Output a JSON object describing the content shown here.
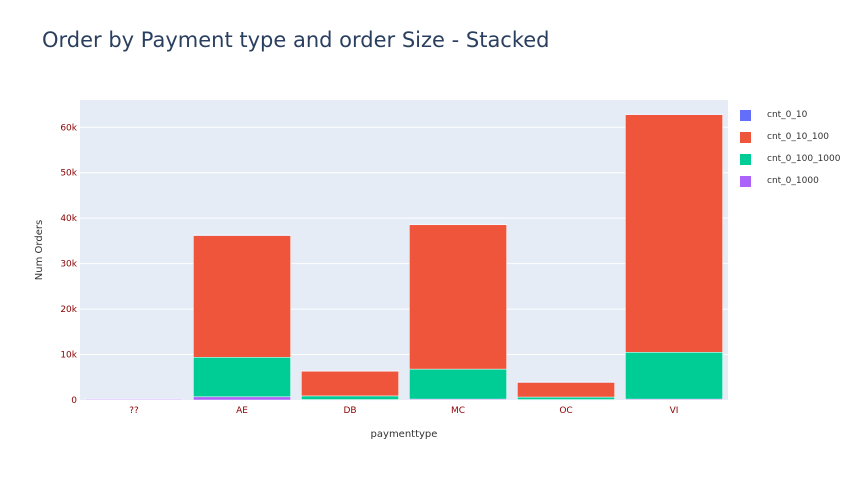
{
  "title": "Order by Payment type and order Size - Stacked",
  "chart_data": {
    "type": "bar",
    "stacked": true,
    "title": "Order by Payment type and order Size - Stacked",
    "xlabel": "paymenttype",
    "ylabel": "Num Orders",
    "categories": [
      "??",
      "AE",
      "DB",
      "MC",
      "OC",
      "VI"
    ],
    "ylim": [
      0,
      66000
    ],
    "yticks": [
      0,
      10000,
      20000,
      30000,
      40000,
      50000,
      60000
    ],
    "ytick_labels": [
      "0",
      "10k",
      "20k",
      "30k",
      "40k",
      "50k",
      "60k"
    ],
    "series": [
      {
        "name": "cnt_0_10",
        "color": "#636efa",
        "values": [
          100,
          100,
          50,
          80,
          30,
          100
        ]
      },
      {
        "name": "cnt_0_10_100",
        "color": "#ef553b",
        "values": [
          0,
          26800,
          5500,
          31800,
          3300,
          52300
        ]
      },
      {
        "name": "cnt_0_100_1000",
        "color": "#00cc96",
        "values": [
          0,
          8700,
          800,
          6600,
          550,
          10300
        ]
      },
      {
        "name": "cnt_0_1000",
        "color": "#ab63fa",
        "values": [
          200,
          700,
          100,
          200,
          100,
          200
        ]
      }
    ],
    "grid": true,
    "legend": "right"
  }
}
